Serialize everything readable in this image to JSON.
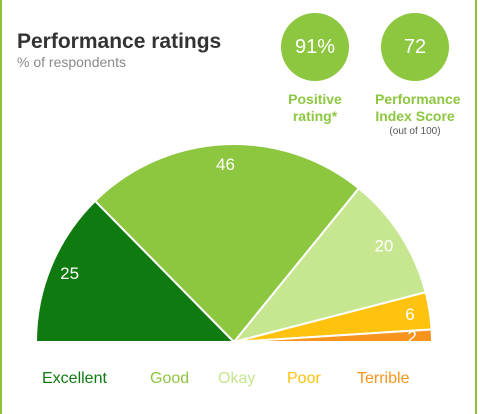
{
  "header": {
    "title": "Performance ratings",
    "subtitle": "% of respondents"
  },
  "kpis": [
    {
      "value": "91%",
      "label_line1": "Positive",
      "label_line2": "rating*",
      "note": ""
    },
    {
      "value": "72",
      "label_line1": "Performance",
      "label_line2": "Index Score",
      "note": "(out of 100)"
    }
  ],
  "chart_data": {
    "type": "pie",
    "variant": "semicircle-gauge",
    "categories": [
      "Excellent",
      "Good",
      "Okay",
      "Poor",
      "Terrible"
    ],
    "values": [
      25,
      46,
      20,
      6,
      2
    ],
    "colors": [
      "#0f7a0f",
      "#8dc63f",
      "#c6e68f",
      "#ffc20e",
      "#f7941d"
    ],
    "legend_position": "bottom"
  }
}
